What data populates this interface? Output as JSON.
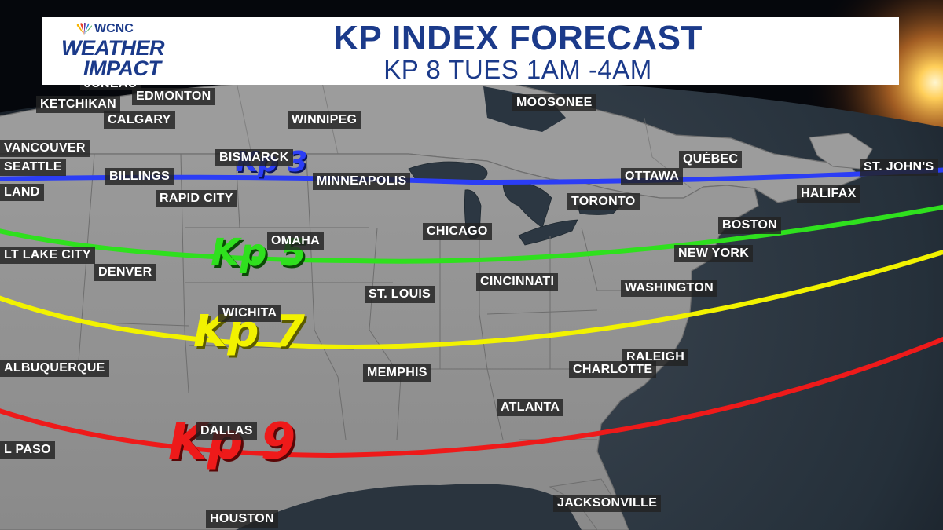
{
  "header": {
    "brand": "WCNC",
    "logo_line1": "WEATHER",
    "logo_line2": "IMPACT",
    "title": "KP INDEX FORECAST",
    "subtitle": "KP 8 TUES 1AM -4AM"
  },
  "kp_bands": [
    {
      "label": "Kp 3",
      "color": "#2b3df5"
    },
    {
      "label": "Kp 5",
      "color": "#2fe01e"
    },
    {
      "label": "Kp 7",
      "color": "#f2f200"
    },
    {
      "label": "Kp 9",
      "color": "#ee1a1a"
    }
  ],
  "cities": {
    "juneau": "JUNEAU",
    "ketchikan": "KETCHIKAN",
    "edmonton": "EDMONTON",
    "calgary": "CALGARY",
    "winnipeg": "WINNIPEG",
    "moosonee": "MOOSONEE",
    "vancouver": "VANCOUVER",
    "seattle": "SEATTLE",
    "portland": "LAND",
    "billings": "BILLINGS",
    "bismarck": "BISMARCK",
    "rapid_city": "RAPID CITY",
    "minneapolis": "MINNEAPOLIS",
    "quebec": "QUÉBEC",
    "ottawa": "OTTAWA",
    "st_johns": "ST. JOHN'S",
    "halifax": "HALIFAX",
    "toronto": "TORONTO",
    "boston": "BOSTON",
    "chicago": "CHICAGO",
    "omaha": "OMAHA",
    "salt_lake_city": "LT LAKE CITY",
    "denver": "DENVER",
    "new_york": "NEW YORK",
    "cincinnati": "CINCINNATI",
    "st_louis": "ST. LOUIS",
    "washington": "WASHINGTON",
    "wichita": "WICHITA",
    "raleigh": "RALEIGH",
    "albuquerque": "ALBUQUERQUE",
    "memphis": "MEMPHIS",
    "charlotte": "CHARLOTTE",
    "atlanta": "ATLANTA",
    "dallas": "DALLAS",
    "el_paso": "L PASO",
    "jacksonville": "JACKSONVILLE",
    "houston": "HOUSTON"
  }
}
